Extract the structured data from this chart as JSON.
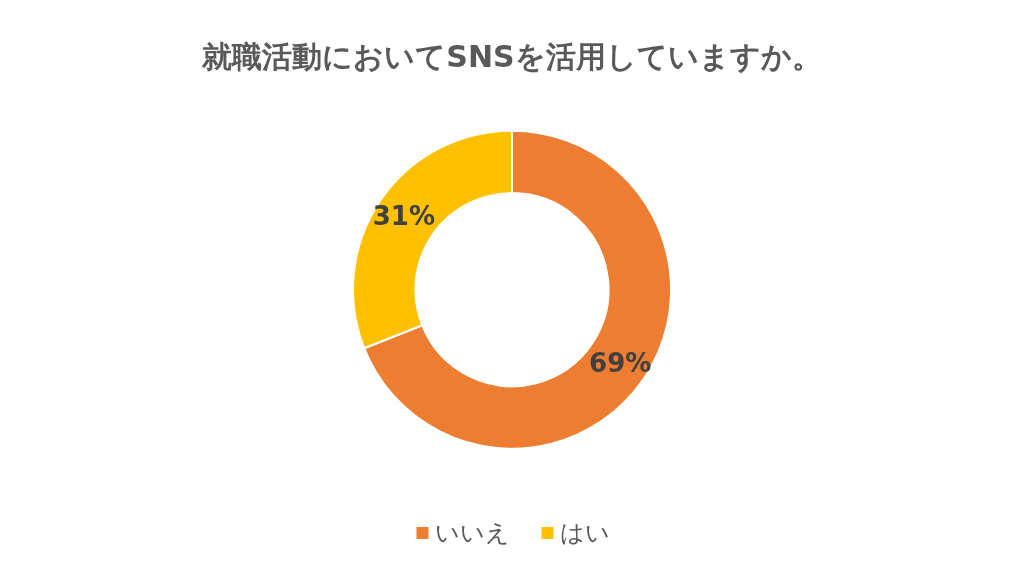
{
  "chart_data": {
    "type": "donut",
    "title": "就職活動においてSNSを活用していますか。",
    "categories": [
      "いいえ",
      "はい"
    ],
    "values": [
      69,
      31
    ],
    "colors": [
      "#ed7d31",
      "#ffc000"
    ],
    "value_labels": [
      "69%",
      "31%"
    ],
    "legend": "bottom"
  }
}
